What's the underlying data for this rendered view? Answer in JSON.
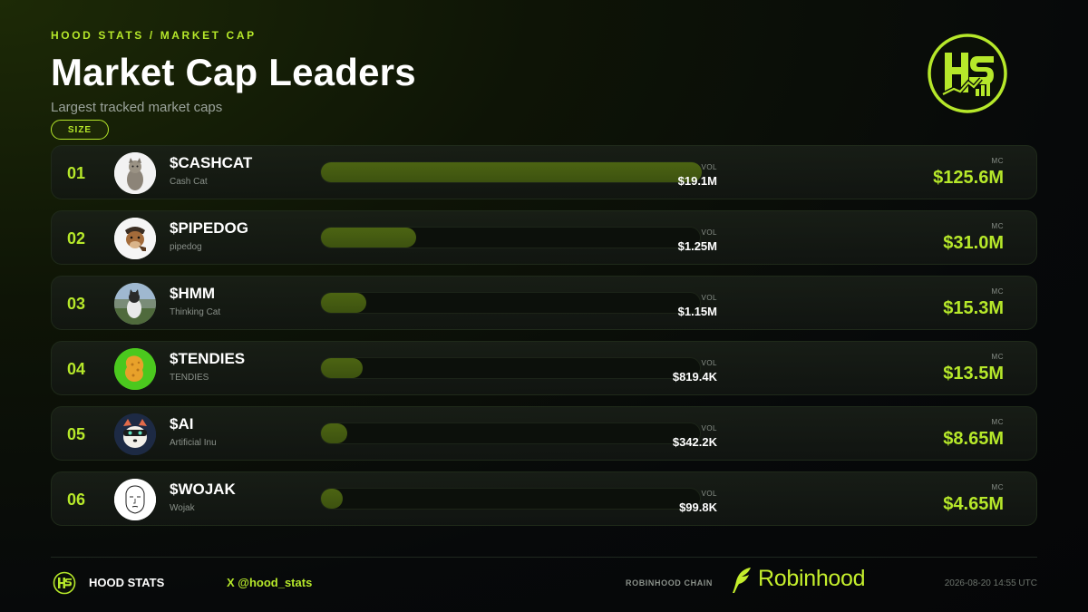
{
  "header": {
    "breadcrumb": "HOOD STATS / MARKET CAP",
    "title": "Market Cap Leaders",
    "subtitle": "Largest tracked market caps",
    "sort_pill": "SIZE",
    "logo_text": "HS"
  },
  "columns": {
    "vol_label": "VOL",
    "mc_label": "MC"
  },
  "rows": [
    {
      "rank": "01",
      "ticker": "$CASHCAT",
      "name": "Cash Cat",
      "vol": "$19.1M",
      "mc": "$125.6M",
      "bar_fraction": 1.0,
      "avatar": "cat-photo-icon",
      "avatar_bg": "#f2f2f2"
    },
    {
      "rank": "02",
      "ticker": "$PIPEDOG",
      "name": "pipedog",
      "vol": "$1.25M",
      "mc": "$31.0M",
      "bar_fraction": 0.25,
      "avatar": "dog-with-pipe-icon",
      "avatar_bg": "#f5f5f5"
    },
    {
      "rank": "03",
      "ticker": "$HMM",
      "name": "Thinking Cat",
      "vol": "$1.15M",
      "mc": "$15.3M",
      "bar_fraction": 0.12,
      "avatar": "thinking-cat-photo-icon",
      "avatar_bg": "#6a7c86"
    },
    {
      "rank": "04",
      "ticker": "$TENDIES",
      "name": "TENDIES",
      "vol": "$819.4K",
      "mc": "$13.5M",
      "bar_fraction": 0.11,
      "avatar": "chicken-tender-icon",
      "avatar_bg": "#4bc81e"
    },
    {
      "rank": "05",
      "ticker": "$AI",
      "name": "Artificial Inu",
      "vol": "$342.2K",
      "mc": "$8.65M",
      "bar_fraction": 0.07,
      "avatar": "masked-dog-icon",
      "avatar_bg": "#1d2a44"
    },
    {
      "rank": "06",
      "ticker": "$WOJAK",
      "name": "Wojak",
      "vol": "$99.8K",
      "mc": "$4.65M",
      "bar_fraction": 0.05,
      "avatar": "wojak-face-icon",
      "avatar_bg": "#ffffff"
    }
  ],
  "footer": {
    "brand": "HOOD STATS",
    "handle": "X @hood_stats",
    "chain": "ROBINHOOD CHAIN",
    "robinhood": "Robinhood",
    "timestamp": "2026-08-20 14:55 UTC"
  },
  "colors": {
    "accent": "#b6e82a",
    "bar_fill": "#4c6412",
    "background": "#07090a"
  }
}
